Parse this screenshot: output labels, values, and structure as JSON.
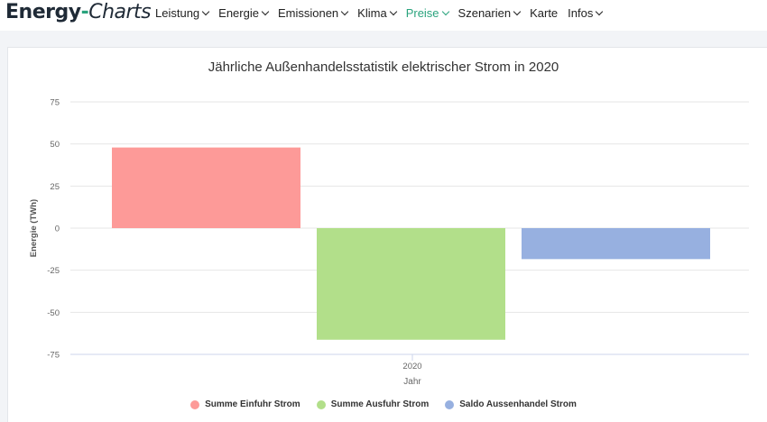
{
  "header": {
    "logo_main": "Energy",
    "logo_dash": "-",
    "logo_italic": "Charts",
    "nav": [
      {
        "label": "Leistung",
        "active": false
      },
      {
        "label": "Energie",
        "active": false
      },
      {
        "label": "Emissionen",
        "active": false
      },
      {
        "label": "Klima",
        "active": false
      },
      {
        "label": "Preise",
        "active": true
      },
      {
        "label": "Szenarien",
        "active": false
      },
      {
        "label": "Karte",
        "active": false
      },
      {
        "label": "Infos",
        "active": false
      }
    ]
  },
  "chart_data": {
    "type": "bar",
    "title": "Jährliche Außenhandelsstatistik elektrischer Strom in 2020",
    "xlabel": "Jahr",
    "ylabel": "Energie (TWh)",
    "categories": [
      "2020"
    ],
    "ylim": [
      -75,
      75
    ],
    "yticks": [
      75,
      50,
      25,
      0,
      -25,
      -50,
      -75
    ],
    "grid": true,
    "legend_position": "bottom",
    "series": [
      {
        "name": "Summe Einfuhr Strom",
        "values": [
          47.9
        ],
        "color": "#fd9a98"
      },
      {
        "name": "Summe Ausfuhr Strom",
        "values": [
          -66.3
        ],
        "color": "#b2df8a"
      },
      {
        "name": "Saldo Aussenhandel Strom",
        "values": [
          -18.4
        ],
        "color": "#97b0e0"
      }
    ]
  }
}
